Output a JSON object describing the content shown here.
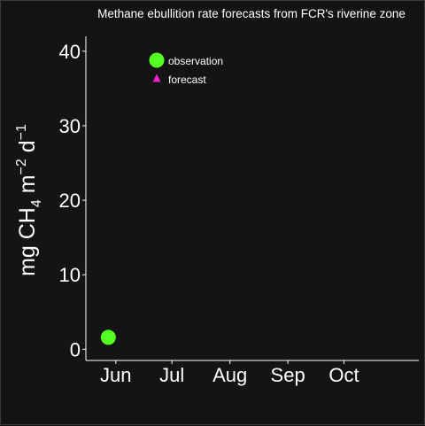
{
  "chart_data": {
    "type": "scatter",
    "title": "Methane ebullition rate forecasts from FCR's riverine zone",
    "ylabel": {
      "base": "mg CH",
      "sub": "4",
      "mid": " m",
      "sup1": "−2",
      "mid2": " d",
      "sup2": "−1"
    },
    "ylim": [
      -1.5,
      42
    ],
    "yticks": [
      0,
      10,
      20,
      30,
      40
    ],
    "ytick_labels": [
      "0",
      "10",
      "20",
      "30",
      "40"
    ],
    "xlim": [
      0,
      178
    ],
    "xticks": [
      16,
      46,
      77,
      108,
      138
    ],
    "xtick_labels": [
      "Jun",
      "Jul",
      "Aug",
      "Sep",
      "Oct"
    ],
    "grid": false,
    "legend": {
      "placement": "top-left",
      "entries": [
        {
          "label": "observation",
          "shape": "circle",
          "color": "#55ff22"
        },
        {
          "label": "forecast",
          "shape": "triangle",
          "color": "#ee22cc"
        }
      ]
    },
    "series": [
      {
        "type": "observation",
        "color": "#55ff22",
        "shape": "circle",
        "points": [
          {
            "x": 12,
            "y": 1.6
          }
        ]
      },
      {
        "type": "forecast",
        "color": "#ee22cc",
        "shape": "triangle",
        "points": []
      }
    ]
  }
}
